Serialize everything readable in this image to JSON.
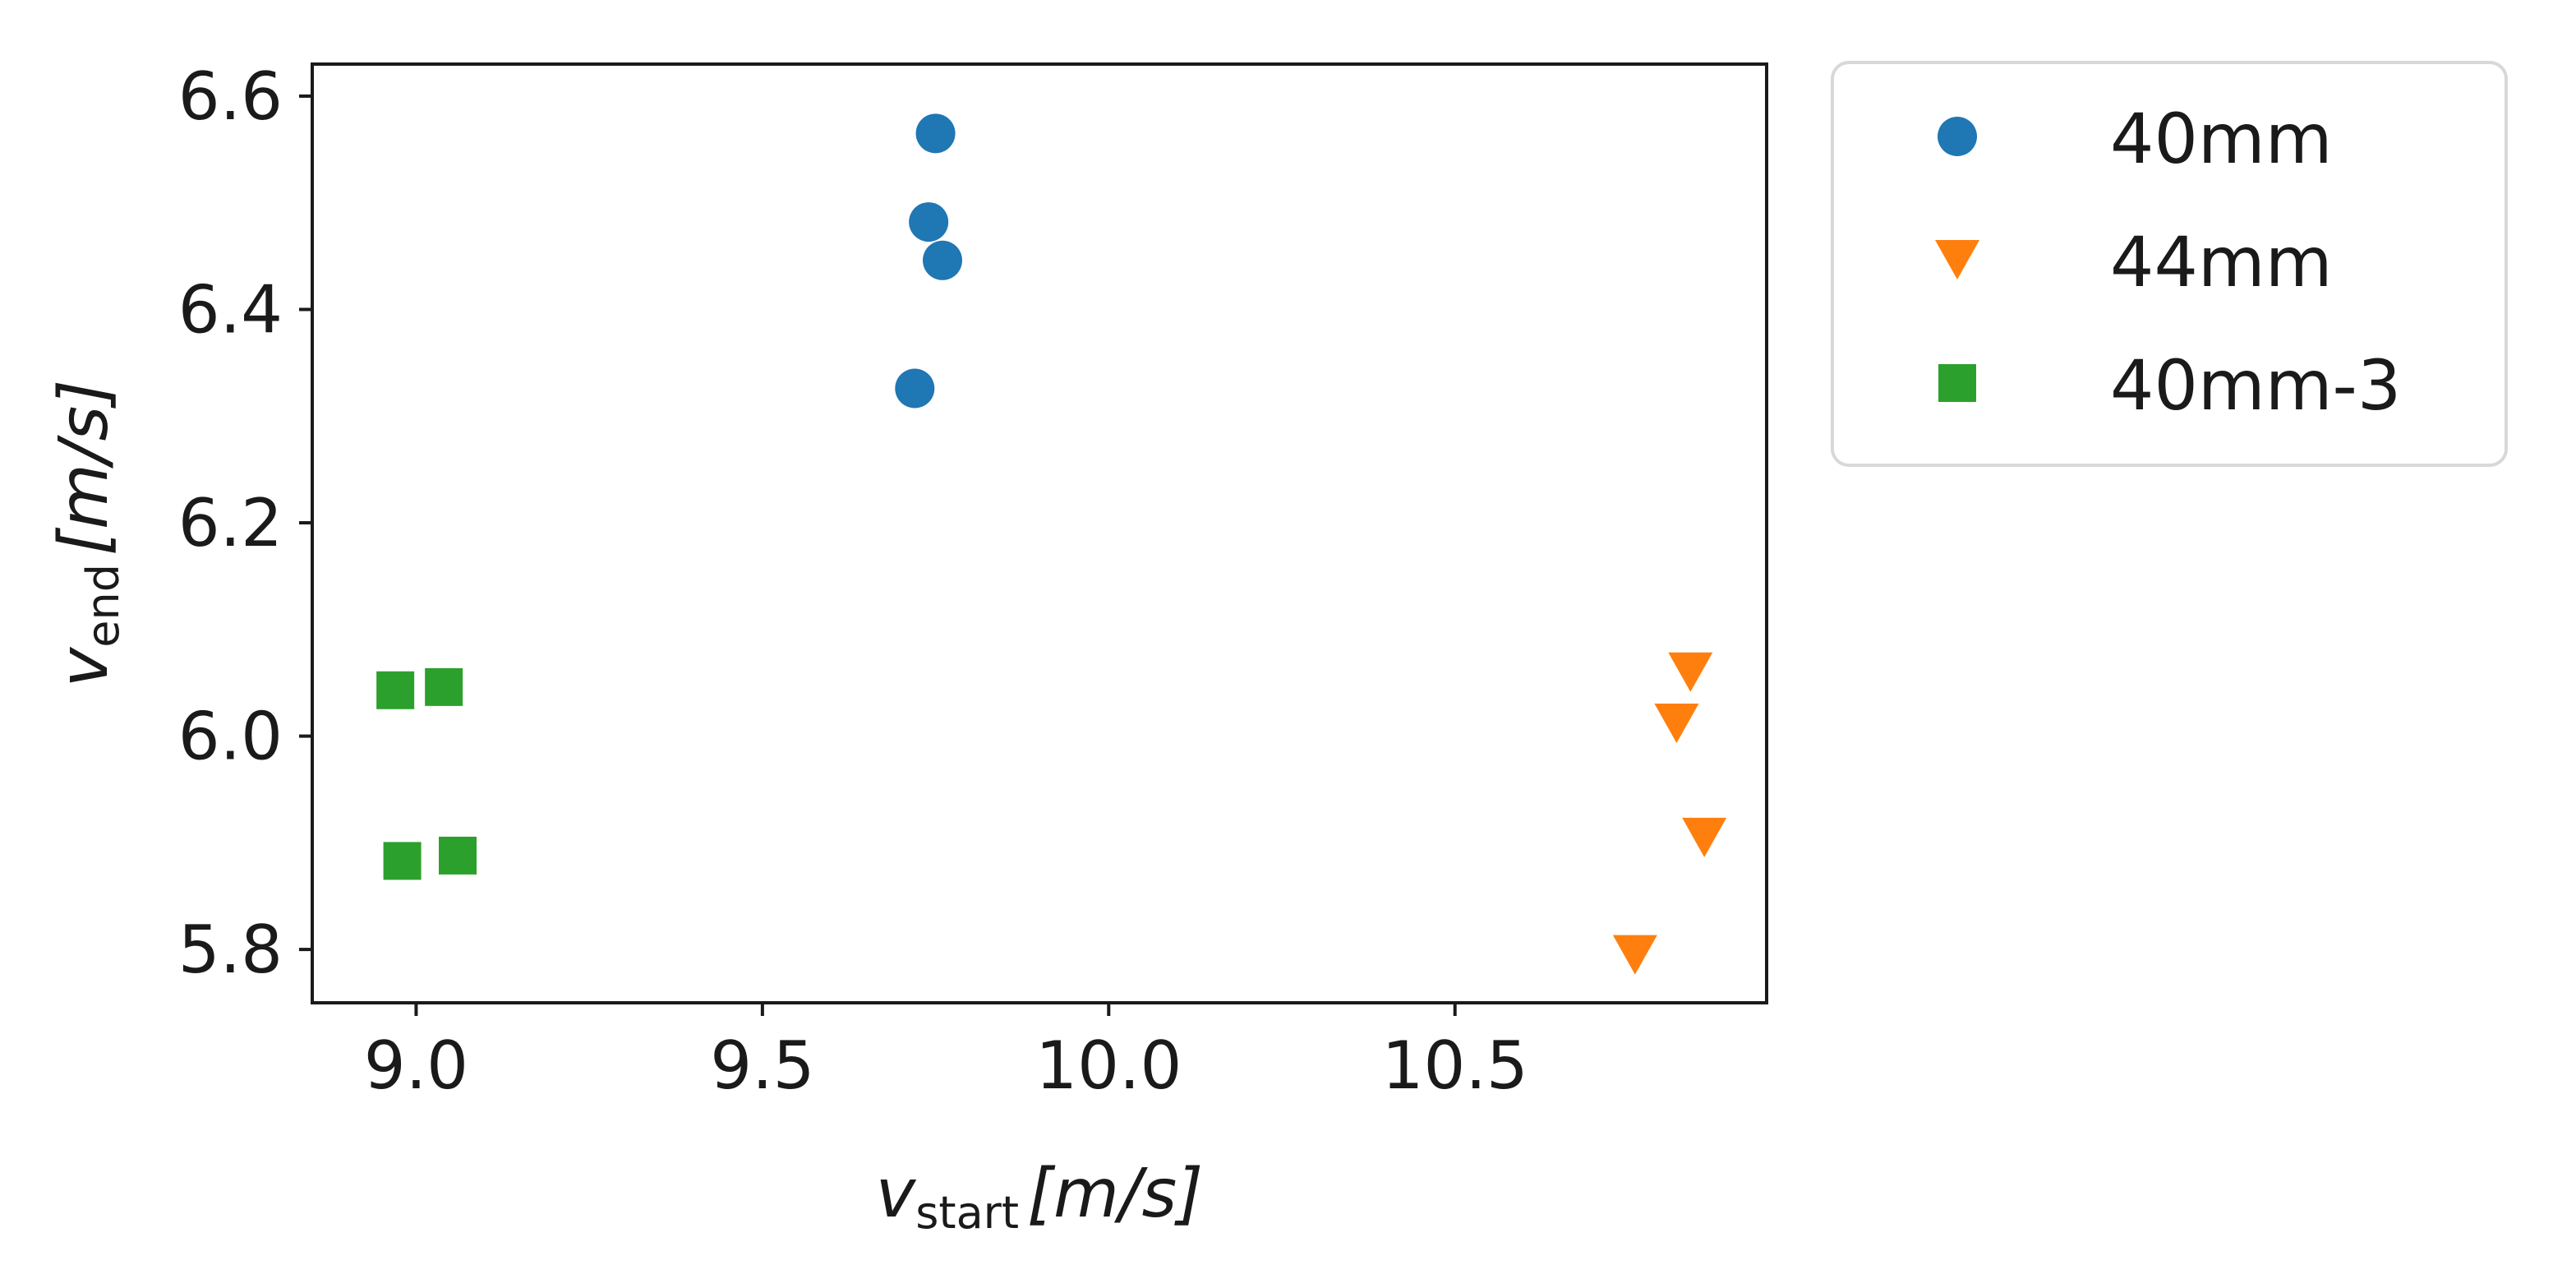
{
  "chart_data": {
    "type": "scatter",
    "xlabel": {
      "var": "v",
      "sub": "start",
      "unit": "[m/s]"
    },
    "ylabel": {
      "var": "v",
      "sub": "end",
      "unit": "[m/s]"
    },
    "xlim": [
      8.85,
      10.95
    ],
    "ylim": [
      5.75,
      6.63
    ],
    "xticks": [
      9.0,
      9.5,
      10.0,
      10.5
    ],
    "xtick_labels": [
      "9.0",
      "9.5",
      "10.0",
      "10.5"
    ],
    "yticks": [
      5.8,
      6.0,
      6.2,
      6.4,
      6.6
    ],
    "ytick_labels": [
      "5.8",
      "6.0",
      "6.2",
      "6.4",
      "6.6"
    ],
    "grid": false,
    "legend_position": "outside-top-right",
    "series": [
      {
        "name": "40mm",
        "marker": "circle",
        "color": "#1f77b4",
        "points": [
          {
            "x": 9.75,
            "y": 6.565
          },
          {
            "x": 9.74,
            "y": 6.482
          },
          {
            "x": 9.76,
            "y": 6.446
          },
          {
            "x": 9.72,
            "y": 6.326
          }
        ]
      },
      {
        "name": "44mm",
        "marker": "triangle-down",
        "color": "#ff7f0e",
        "points": [
          {
            "x": 10.84,
            "y": 6.06
          },
          {
            "x": 10.82,
            "y": 6.012
          },
          {
            "x": 10.86,
            "y": 5.905
          },
          {
            "x": 10.76,
            "y": 5.795
          }
        ]
      },
      {
        "name": "40mm-3",
        "marker": "square",
        "color": "#2ca02c",
        "points": [
          {
            "x": 8.97,
            "y": 6.043
          },
          {
            "x": 9.04,
            "y": 6.046
          },
          {
            "x": 8.98,
            "y": 5.883
          },
          {
            "x": 9.06,
            "y": 5.888
          }
        ]
      }
    ]
  }
}
